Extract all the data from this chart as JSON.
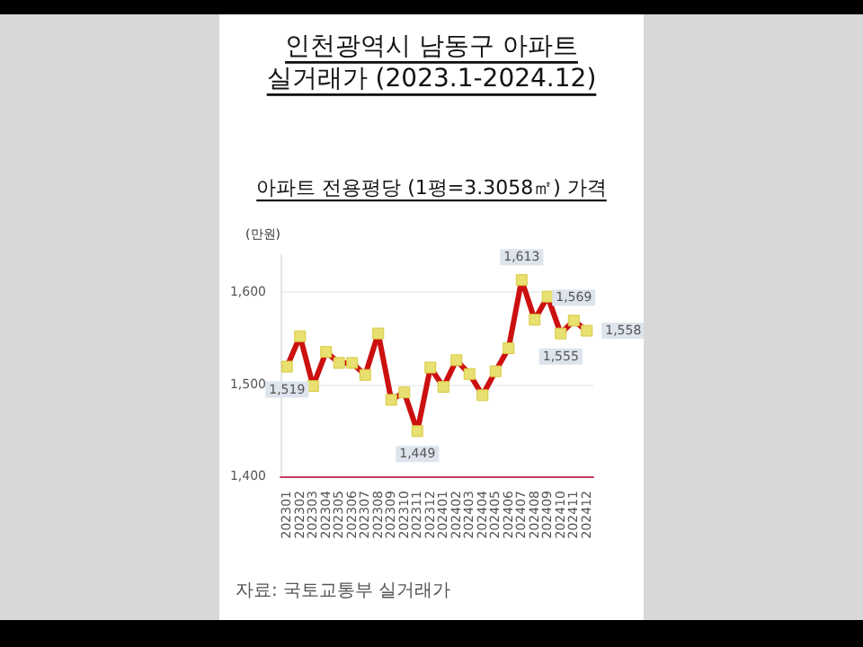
{
  "chart_data": {
    "type": "line",
    "title": "인천광역시 남동구 아파트\n실거래가 (2023.1-2024.12)",
    "subtitle": "아파트 전용평당 (1평=3.3058㎡) 가격",
    "ylabel": "(만원)",
    "categories": [
      "202301",
      "202302",
      "202303",
      "202304",
      "202305",
      "202306",
      "202307",
      "202308",
      "202309",
      "202310",
      "202311",
      "202312",
      "202401",
      "202402",
      "202403",
      "202404",
      "202405",
      "202406",
      "202407",
      "202408",
      "202409",
      "202410",
      "202411",
      "202412"
    ],
    "series": [
      {
        "color": "#cc1010",
        "values": [
          1519,
          1552,
          1498,
          1535,
          1523,
          1523,
          1510,
          1555,
          1483,
          1491,
          1449,
          1518,
          1497,
          1526,
          1511,
          1488,
          1514,
          1539,
          1613,
          1570,
          1595,
          1555,
          1569,
          1558
        ],
        "value_labels": [
          "1,519",
          null,
          null,
          null,
          null,
          null,
          null,
          null,
          null,
          null,
          "1,449",
          null,
          null,
          null,
          null,
          null,
          null,
          null,
          "1,613",
          null,
          null,
          "1,555",
          "1,569",
          "1,558"
        ]
      }
    ],
    "ylim": [
      1400,
      1640
    ],
    "yticks": [
      {
        "value": 1400,
        "label": "1,400"
      },
      {
        "value": 1500,
        "label": "1,500"
      },
      {
        "value": 1600,
        "label": "1,600"
      }
    ],
    "grid": "y",
    "marker": "square",
    "annotations": [
      "자료: 국토교통부 실거래가"
    ]
  }
}
